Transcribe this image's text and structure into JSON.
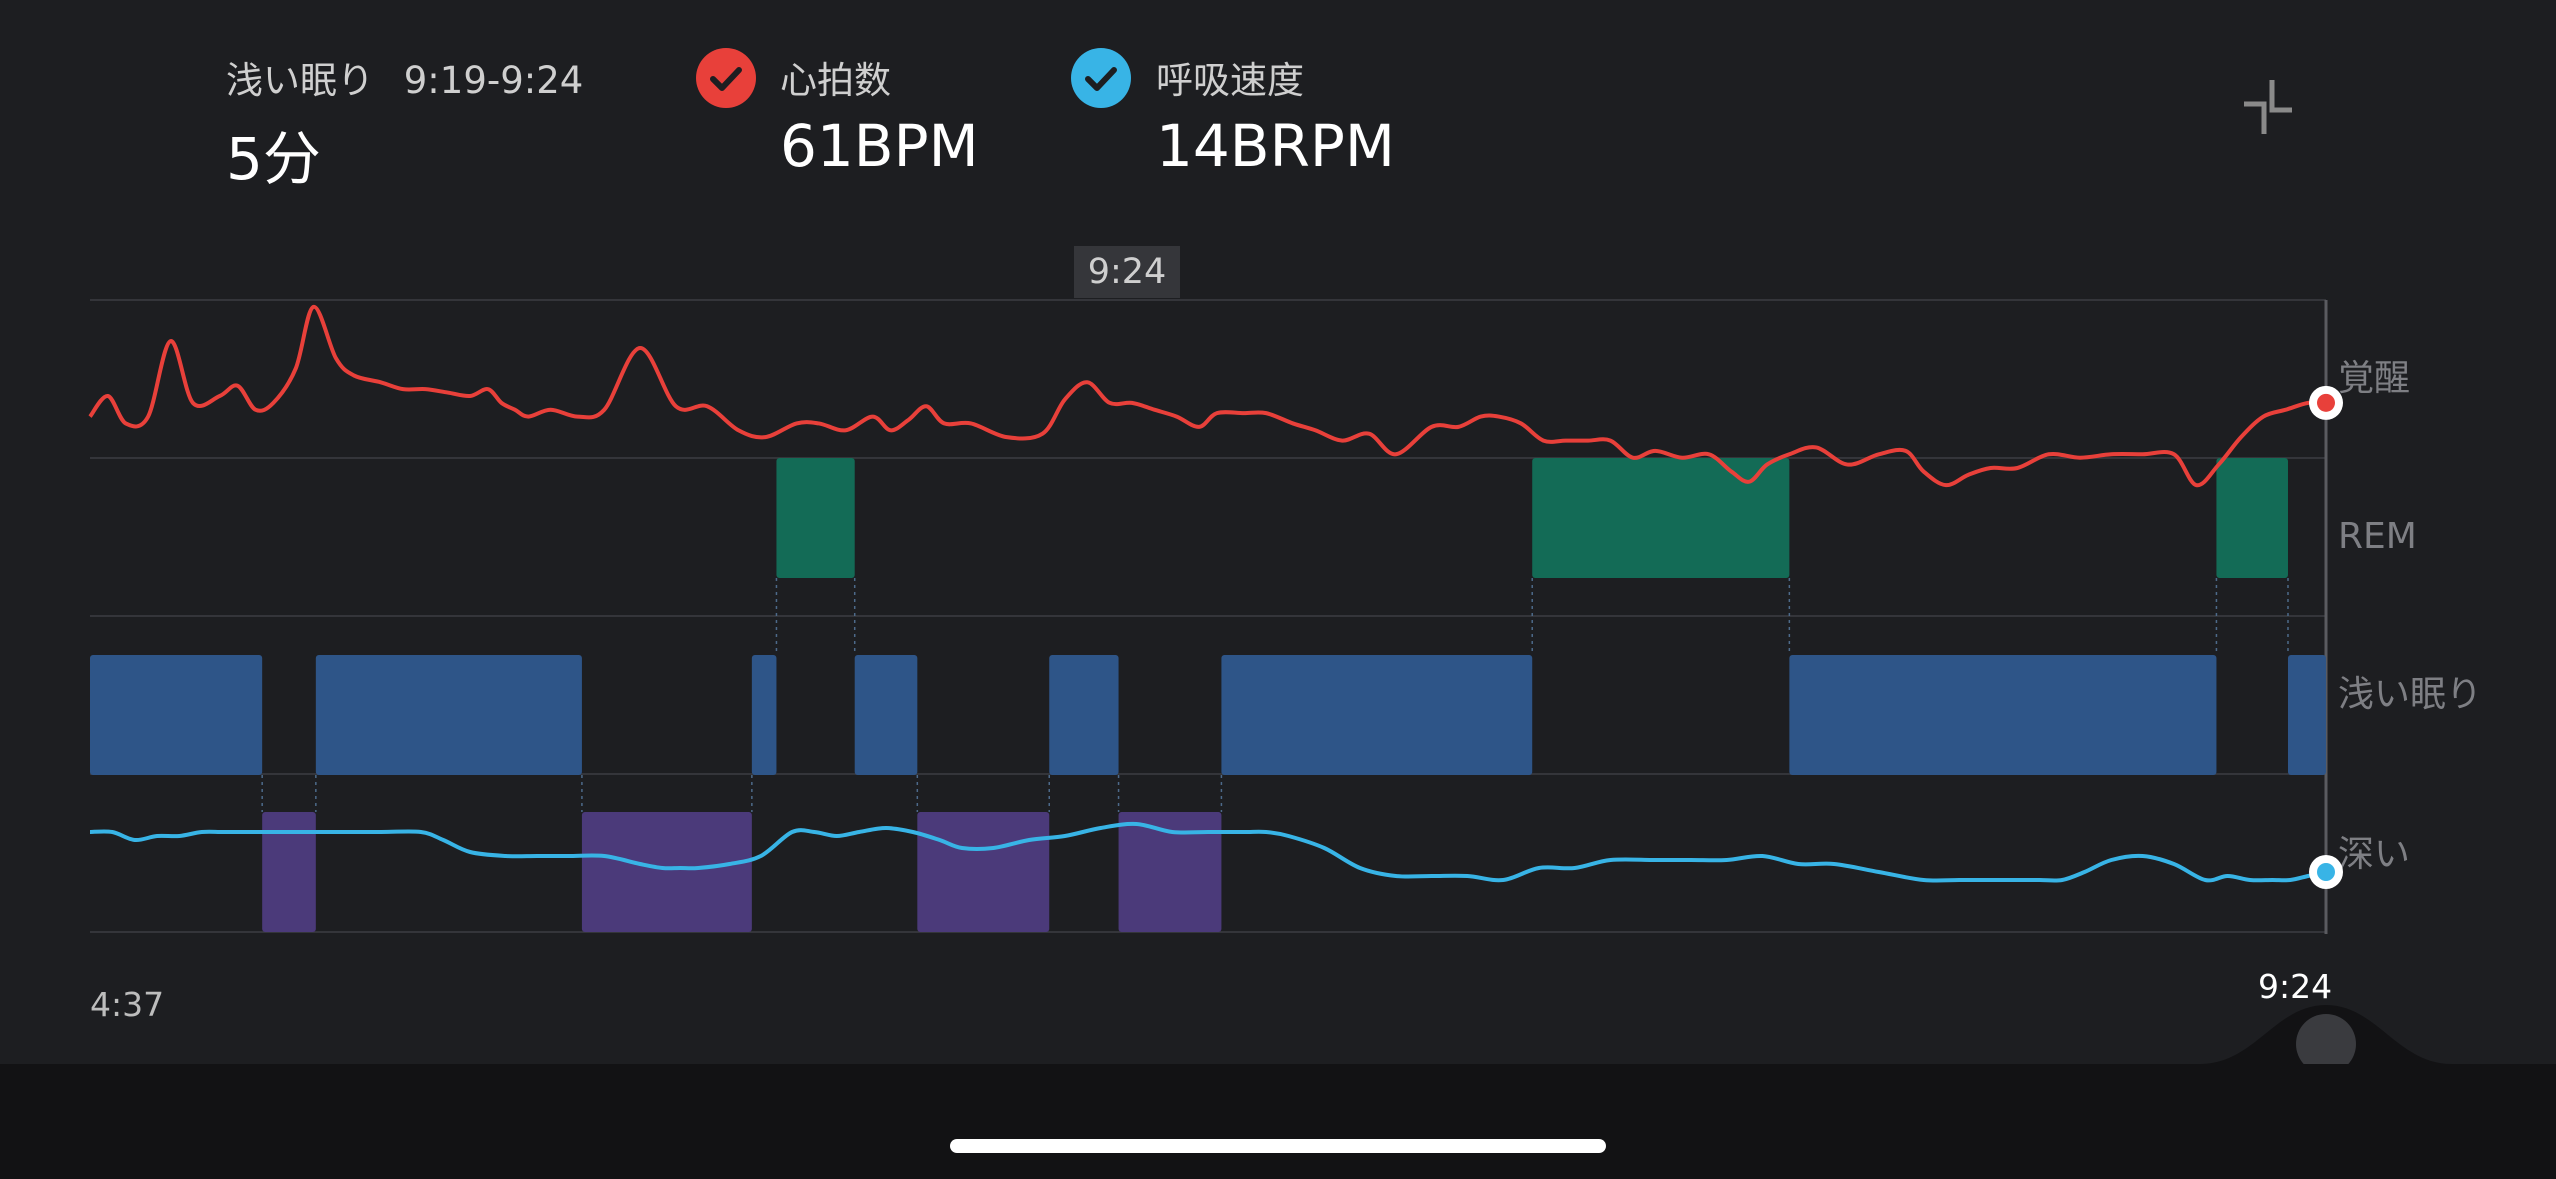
{
  "header": {
    "stage_label": "浅い眠り",
    "time_range": "9:19-9:24",
    "duration": "5分",
    "heart_rate_label": "心拍数",
    "heart_rate_value": "61BPM",
    "breathing_label": "呼吸速度",
    "breathing_value": "14BRPM",
    "collapse_icon": "collapse-icon"
  },
  "tooltip": {
    "time": "9:24"
  },
  "colors": {
    "heart_rate": "#e8403a",
    "breathing": "#38b4e6",
    "awake": "#1d1e21",
    "rem": "#136b56",
    "light": "#2e5588",
    "deep": "#4b3a7a",
    "background": "#1d1e21"
  },
  "chart_data": {
    "type": "area",
    "x_start_label": "4:37",
    "x_end_label": "9:24",
    "stage_labels": [
      "覚醒",
      "REM",
      "浅い眠り",
      "深い"
    ],
    "stages": [
      {
        "stage": "light",
        "start": 0.0,
        "end": 0.077
      },
      {
        "stage": "deep",
        "start": 0.077,
        "end": 0.101
      },
      {
        "stage": "light",
        "start": 0.101,
        "end": 0.22
      },
      {
        "stage": "deep",
        "start": 0.22,
        "end": 0.296
      },
      {
        "stage": "light",
        "start": 0.296,
        "end": 0.307
      },
      {
        "stage": "rem",
        "start": 0.307,
        "end": 0.342
      },
      {
        "stage": "light",
        "start": 0.342,
        "end": 0.37
      },
      {
        "stage": "deep",
        "start": 0.37,
        "end": 0.429
      },
      {
        "stage": "light",
        "start": 0.429,
        "end": 0.46
      },
      {
        "stage": "deep",
        "start": 0.46,
        "end": 0.506
      },
      {
        "stage": "light",
        "start": 0.506,
        "end": 0.645
      },
      {
        "stage": "rem",
        "start": 0.645,
        "end": 0.76
      },
      {
        "stage": "light",
        "start": 0.76,
        "end": 0.951
      },
      {
        "stage": "rem",
        "start": 0.951,
        "end": 0.983
      },
      {
        "stage": "light",
        "start": 0.983,
        "end": 1.0
      }
    ],
    "heart_rate": {
      "name": "心拍数",
      "t": [
        0.0,
        0.008,
        0.016,
        0.026,
        0.036,
        0.046,
        0.058,
        0.066,
        0.074,
        0.082,
        0.092,
        0.1,
        0.11,
        0.118,
        0.13,
        0.14,
        0.15,
        0.16,
        0.17,
        0.178,
        0.184,
        0.19,
        0.196,
        0.206,
        0.218,
        0.23,
        0.246,
        0.262,
        0.276,
        0.29,
        0.302,
        0.316,
        0.326,
        0.338,
        0.35,
        0.358,
        0.366,
        0.374,
        0.382,
        0.394,
        0.41,
        0.426,
        0.436,
        0.446,
        0.456,
        0.466,
        0.476,
        0.486,
        0.496,
        0.504,
        0.516,
        0.526,
        0.538,
        0.548,
        0.56,
        0.572,
        0.584,
        0.6,
        0.612,
        0.622,
        0.63,
        0.64,
        0.65,
        0.66,
        0.67,
        0.68,
        0.69,
        0.7,
        0.712,
        0.724,
        0.734,
        0.742,
        0.75,
        0.76,
        0.772,
        0.786,
        0.8,
        0.812,
        0.82,
        0.83,
        0.84,
        0.85,
        0.862,
        0.876,
        0.89,
        0.904,
        0.918,
        0.932,
        0.942,
        0.952,
        0.962,
        0.972,
        0.982,
        0.992,
        1.0
      ],
      "v": [
        66,
        72,
        64,
        66,
        88,
        70,
        72,
        75,
        68,
        70,
        80,
        98,
        83,
        78,
        76,
        74,
        74,
        73,
        72,
        74,
        70,
        68,
        66,
        68,
        66,
        68,
        86,
        69,
        69,
        62,
        60,
        64,
        64,
        62,
        66,
        62,
        65,
        69,
        64,
        64,
        60,
        61,
        71,
        76,
        70,
        70,
        68,
        66,
        63,
        67,
        67,
        67,
        64,
        62,
        59,
        61,
        55,
        63,
        63,
        66,
        66,
        64,
        59,
        59,
        59,
        59,
        54,
        56,
        54,
        55,
        50,
        47,
        52,
        55,
        57,
        52,
        55,
        56,
        50,
        46,
        49,
        51,
        51,
        55,
        54,
        55,
        55,
        55,
        46,
        52,
        60,
        66,
        68,
        70,
        70
      ]
    },
    "breathing": {
      "name": "呼吸速度",
      "t": [
        0.0,
        0.01,
        0.02,
        0.03,
        0.04,
        0.05,
        0.06,
        0.075,
        0.09,
        0.105,
        0.13,
        0.148,
        0.158,
        0.17,
        0.186,
        0.2,
        0.214,
        0.23,
        0.246,
        0.256,
        0.264,
        0.272,
        0.286,
        0.3,
        0.314,
        0.324,
        0.334,
        0.344,
        0.356,
        0.368,
        0.38,
        0.39,
        0.404,
        0.42,
        0.436,
        0.452,
        0.468,
        0.484,
        0.5,
        0.516,
        0.526,
        0.536,
        0.552,
        0.568,
        0.584,
        0.6,
        0.616,
        0.632,
        0.648,
        0.664,
        0.68,
        0.7,
        0.716,
        0.732,
        0.748,
        0.764,
        0.78,
        0.8,
        0.82,
        0.836,
        0.85,
        0.862,
        0.872,
        0.882,
        0.892,
        0.904,
        0.918,
        0.932,
        0.946,
        0.956,
        0.966,
        0.976,
        0.984,
        0.992,
        1.0
      ],
      "v": [
        42,
        42,
        40,
        41,
        41,
        42,
        42,
        42,
        42,
        42,
        42,
        42,
        40,
        37,
        36,
        36,
        36,
        36,
        34,
        33,
        33,
        33,
        34,
        36,
        42,
        42,
        41,
        42,
        43,
        42,
        40,
        38,
        38,
        40,
        41,
        43,
        44,
        42,
        42,
        42,
        42,
        41,
        38,
        33,
        31,
        31,
        31,
        30,
        33,
        33,
        35,
        35,
        35,
        35,
        36,
        34,
        34,
        32,
        30,
        30,
        30,
        30,
        30,
        30,
        32,
        35,
        36,
        34,
        30,
        31,
        30,
        30,
        30,
        31,
        32
      ]
    }
  }
}
